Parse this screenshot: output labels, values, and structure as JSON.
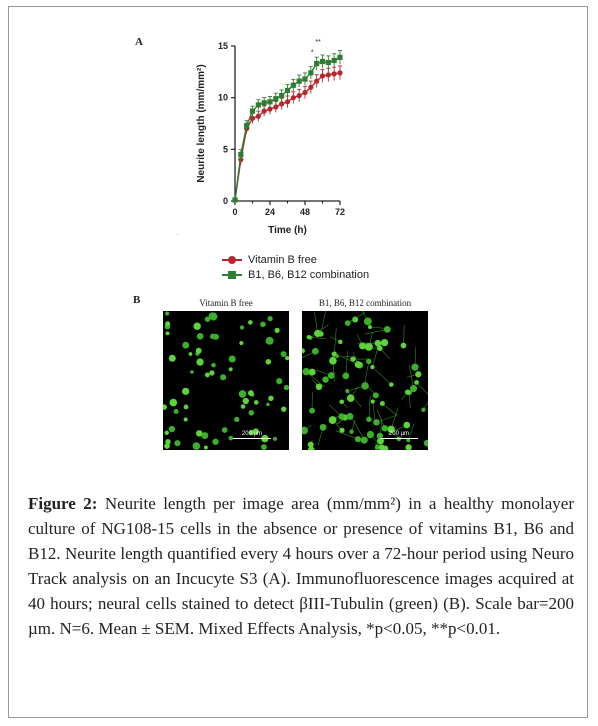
{
  "panel_a_label": "A",
  "panel_b_label": "B",
  "chart_data": {
    "type": "line",
    "xlabel": "Time (h)",
    "ylabel": "Neurite length (mm/mm²)",
    "xlim": [
      0,
      72
    ],
    "ylim": [
      0,
      15
    ],
    "xticks": [
      "0",
      "24",
      "48",
      "72"
    ],
    "yticks": [
      "0",
      "5",
      "10",
      "15"
    ],
    "x": [
      0,
      4,
      8,
      12,
      16,
      20,
      24,
      28,
      32,
      36,
      40,
      44,
      48,
      52,
      56,
      60,
      64,
      68,
      72
    ],
    "series": [
      {
        "name": "Vitamin B free",
        "color": "#b5272c",
        "marker": "circle",
        "values": [
          0.1,
          4.0,
          7.0,
          8.0,
          8.2,
          8.7,
          8.9,
          9.1,
          9.4,
          9.6,
          10.0,
          10.2,
          10.5,
          11.0,
          11.6,
          12.1,
          12.2,
          12.3,
          12.4
        ]
      },
      {
        "name": "B1, B6, B12 combination",
        "color": "#2e7d32",
        "marker": "square",
        "values": [
          0.1,
          4.5,
          7.3,
          8.7,
          9.3,
          9.5,
          9.6,
          9.9,
          10.2,
          10.7,
          11.2,
          11.6,
          11.8,
          12.4,
          13.3,
          13.5,
          13.4,
          13.6,
          13.9
        ]
      }
    ],
    "annotations": [
      "*",
      "**"
    ],
    "legend_position": "below"
  },
  "images": {
    "left_title": "Vitamin B free",
    "right_title": "B1, B6, B12 combination",
    "scale_label": "200 µm"
  },
  "caption": {
    "label": "Figure 2:",
    "text": " Neurite length per image area (mm/mm²) in a healthy monolayer culture of NG108-15 cells in the absence or presence of vitamins B1, B6 and B12. Neurite length quantified every 4 hours over a 72-hour period using Neuro Track analysis on an Incucyte S3 (A). Immunofluorescence images acquired at 40 hours; neural cells stained to detect βIII-Tubulin (green) (B). Scale bar=200 µm. N=6. Mean ± SEM. Mixed Effects Analysis, *p<0.05, **p<0.01."
  },
  "stray_mark": "."
}
